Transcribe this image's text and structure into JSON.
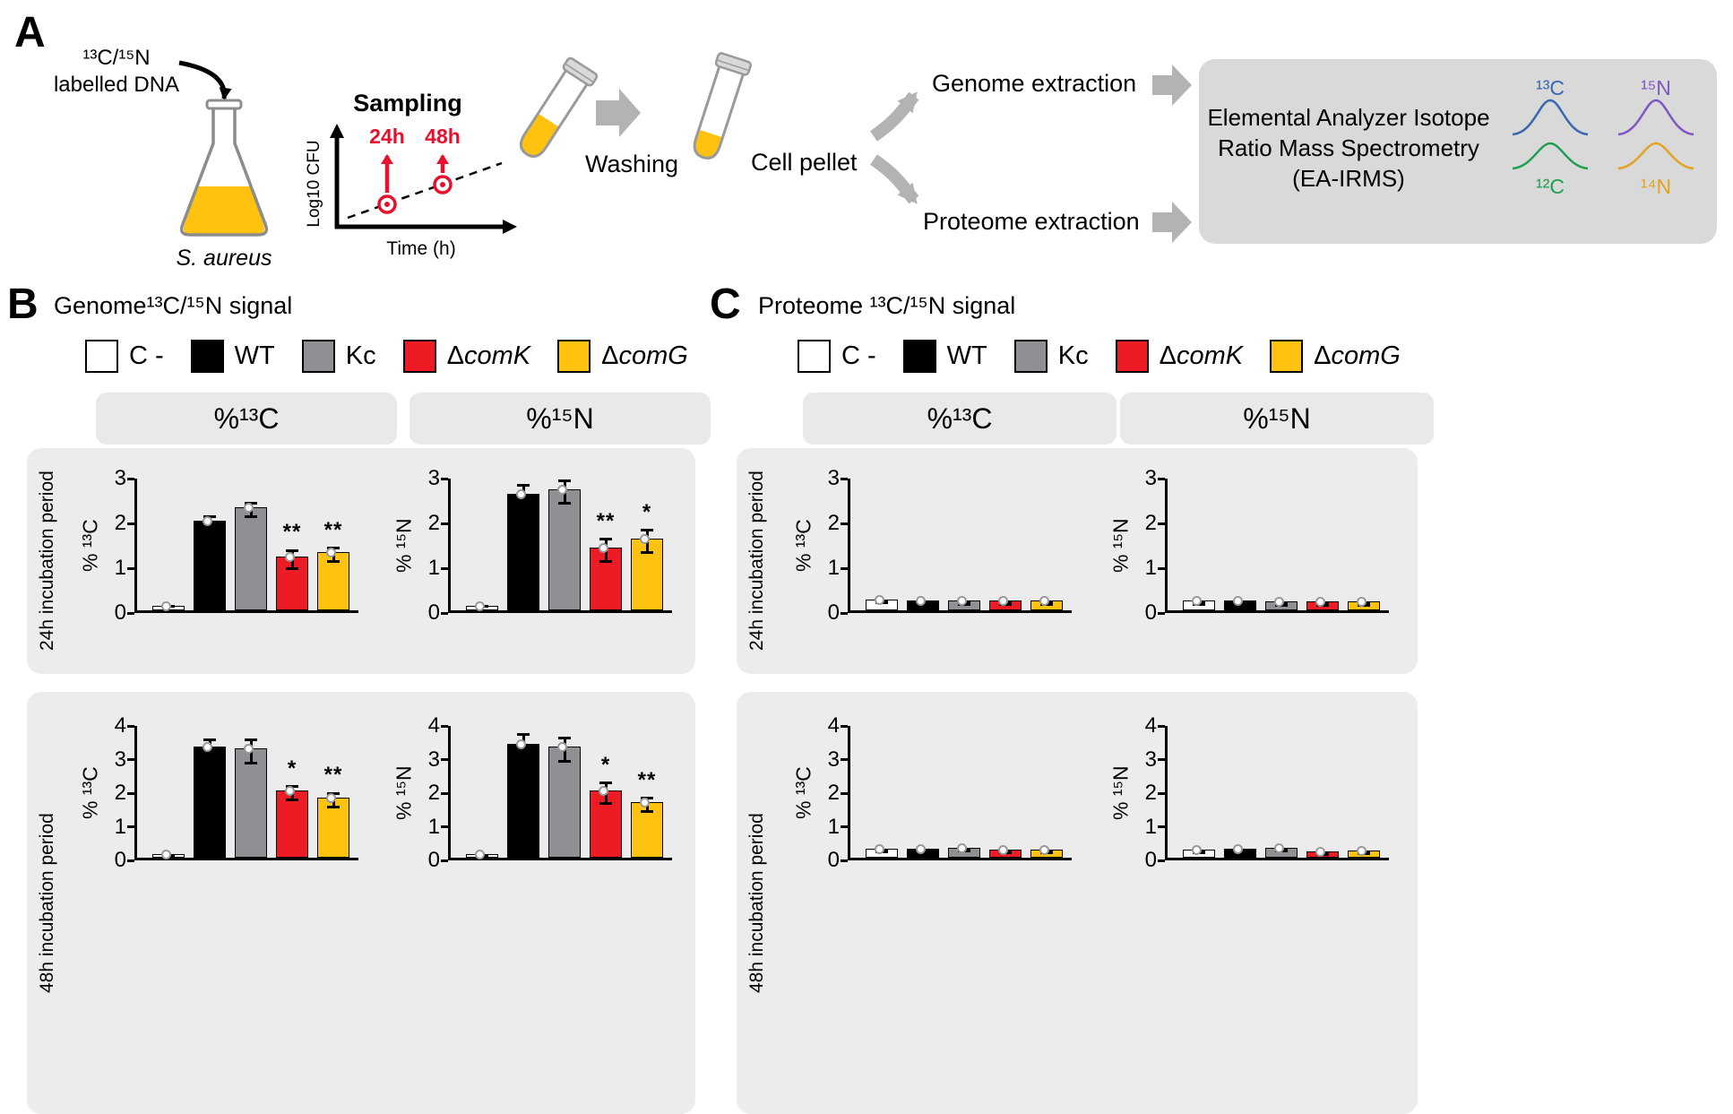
{
  "panelA": {
    "label": "A",
    "dna_line1": "¹³C/¹⁵N",
    "dna_line2": "labelled DNA",
    "organism": "S. aureus",
    "sampling": {
      "title": "Sampling",
      "t24": "24h",
      "t48": "48h",
      "ylabel": "Log10 CFU",
      "xlabel": "Time (h)"
    },
    "washing": "Washing",
    "cell_pellet": "Cell pellet",
    "genome_extraction": "Genome extraction",
    "proteome_extraction": "Proteome extraction",
    "eairms_line1": "Elemental Analyzer Isotope",
    "eairms_line2": "Ratio Mass Spectrometry",
    "eairms_line3": "(EA-IRMS)",
    "isotopes": {
      "c13": "¹³C",
      "c12": "¹²C",
      "n15": "¹⁵N",
      "n14": "¹⁴N"
    },
    "colors": {
      "c13": "#3a67b0",
      "c12": "#1fa04f",
      "n15": "#7e57c5",
      "n14": "#e3a321",
      "red": "#e8112d",
      "gray_arrow": "#b3b3b3",
      "box": "#d9d9d9",
      "liquid": "#FFC20E"
    }
  },
  "panelB": {
    "label": "B",
    "title": "Genome¹³C/¹⁵N signal"
  },
  "panelC": {
    "label": "C",
    "title": "Proteome ¹³C/¹⁵N signal"
  },
  "legend": [
    {
      "label": "C -",
      "color": "#ffffff",
      "italic": false
    },
    {
      "label": "WT",
      "color": "#000000",
      "italic": false
    },
    {
      "label": "Kc",
      "color": "#8f9093",
      "italic": false
    },
    {
      "label": "ΔcomK",
      "color": "#ED1C24",
      "italic": true
    },
    {
      "label": "ΔcomG",
      "color": "#FFC20E",
      "italic": true
    }
  ],
  "bar_colors": [
    "#ffffff",
    "#000000",
    "#8f9093",
    "#ED1C24",
    "#FFC20E"
  ],
  "col_headers": {
    "c13": "%¹³C",
    "n15": "%¹⁵N"
  },
  "row_labels": {
    "r24": "24h incubation period",
    "r48": "48h incubation period"
  },
  "chart_data": [
    {
      "id": "B-24h-13C",
      "type": "bar",
      "panel": "B",
      "row": "24h incubation period",
      "column": "%13C",
      "ylabel": "% ¹³C",
      "ylim": [
        0,
        3
      ],
      "yticks": [
        0,
        1,
        2,
        3
      ],
      "categories": [
        "C -",
        "WT",
        "Kc",
        "ΔcomK",
        "ΔcomG"
      ],
      "values": [
        0.1,
        2.0,
        2.3,
        1.2,
        1.3
      ],
      "errors": [
        0.05,
        0.15,
        0.15,
        0.2,
        0.15
      ],
      "significance": [
        "",
        "",
        "",
        "**",
        "**"
      ]
    },
    {
      "id": "B-24h-15N",
      "type": "bar",
      "panel": "B",
      "row": "24h incubation period",
      "column": "%15N",
      "ylabel": "% ¹⁵N",
      "ylim": [
        0,
        3
      ],
      "yticks": [
        0,
        1,
        2,
        3
      ],
      "categories": [
        "C -",
        "WT",
        "Kc",
        "ΔcomK",
        "ΔcomG"
      ],
      "values": [
        0.1,
        2.6,
        2.7,
        1.4,
        1.6
      ],
      "errors": [
        0.05,
        0.25,
        0.25,
        0.25,
        0.25
      ],
      "significance": [
        "",
        "",
        "",
        "**",
        "*"
      ]
    },
    {
      "id": "B-48h-13C",
      "type": "bar",
      "panel": "B",
      "row": "48h incubation period",
      "column": "%13C",
      "ylabel": "% ¹³C",
      "ylim": [
        0,
        4
      ],
      "yticks": [
        0,
        1,
        2,
        3,
        4
      ],
      "categories": [
        "C -",
        "WT",
        "Kc",
        "ΔcomK",
        "ΔcomG"
      ],
      "values": [
        0.1,
        3.3,
        3.25,
        2.0,
        1.8
      ],
      "errors": [
        0.05,
        0.3,
        0.35,
        0.2,
        0.2
      ],
      "significance": [
        "",
        "",
        "",
        "*",
        "**"
      ]
    },
    {
      "id": "B-48h-15N",
      "type": "bar",
      "panel": "B",
      "row": "48h incubation period",
      "column": "%15N",
      "ylabel": "% ¹⁵N",
      "ylim": [
        0,
        4
      ],
      "yticks": [
        0,
        1,
        2,
        3,
        4
      ],
      "categories": [
        "C -",
        "WT",
        "Kc",
        "ΔcomK",
        "ΔcomG"
      ],
      "values": [
        0.1,
        3.4,
        3.3,
        2.0,
        1.65
      ],
      "errors": [
        0.05,
        0.35,
        0.35,
        0.3,
        0.2
      ],
      "significance": [
        "",
        "",
        "",
        "*",
        "**"
      ]
    },
    {
      "id": "C-24h-13C",
      "type": "bar",
      "panel": "C",
      "row": "24h incubation period",
      "column": "%13C",
      "ylabel": "% ¹³C",
      "ylim": [
        0,
        3
      ],
      "yticks": [
        0,
        1,
        2,
        3
      ],
      "categories": [
        "C -",
        "WT",
        "Kc",
        "ΔcomK",
        "ΔcomG"
      ],
      "values": [
        0.25,
        0.22,
        0.22,
        0.22,
        0.22
      ],
      "errors": [
        0.02,
        0.02,
        0.02,
        0.02,
        0.02
      ],
      "significance": [
        "",
        "",
        "",
        "",
        ""
      ]
    },
    {
      "id": "C-24h-15N",
      "type": "bar",
      "panel": "C",
      "row": "24h incubation period",
      "column": "%15N",
      "ylabel": "% ¹⁵N",
      "ylim": [
        0,
        3
      ],
      "yticks": [
        0,
        1,
        2,
        3
      ],
      "categories": [
        "C -",
        "WT",
        "Kc",
        "ΔcomK",
        "ΔcomG"
      ],
      "values": [
        0.22,
        0.22,
        0.2,
        0.2,
        0.2
      ],
      "errors": [
        0.02,
        0.02,
        0.02,
        0.02,
        0.02
      ],
      "significance": [
        "",
        "",
        "",
        "",
        ""
      ]
    },
    {
      "id": "C-48h-13C",
      "type": "bar",
      "panel": "C",
      "row": "48h incubation period",
      "column": "%13C",
      "ylabel": "% ¹³C",
      "ylim": [
        0,
        4
      ],
      "yticks": [
        0,
        1,
        2,
        3,
        4
      ],
      "categories": [
        "C -",
        "WT",
        "Kc",
        "ΔcomK",
        "ΔcomG"
      ],
      "values": [
        0.28,
        0.28,
        0.3,
        0.25,
        0.25
      ],
      "errors": [
        0.03,
        0.03,
        0.03,
        0.03,
        0.03
      ],
      "significance": [
        "",
        "",
        "",
        "",
        ""
      ]
    },
    {
      "id": "C-48h-15N",
      "type": "bar",
      "panel": "C",
      "row": "48h incubation period",
      "column": "%15N",
      "ylabel": "% ¹⁵N",
      "ylim": [
        0,
        4
      ],
      "yticks": [
        0,
        1,
        2,
        3,
        4
      ],
      "categories": [
        "C -",
        "WT",
        "Kc",
        "ΔcomK",
        "ΔcomG"
      ],
      "values": [
        0.25,
        0.27,
        0.3,
        0.2,
        0.22
      ],
      "errors": [
        0.03,
        0.03,
        0.03,
        0.03,
        0.03
      ],
      "significance": [
        "",
        "",
        "",
        "",
        ""
      ]
    }
  ]
}
